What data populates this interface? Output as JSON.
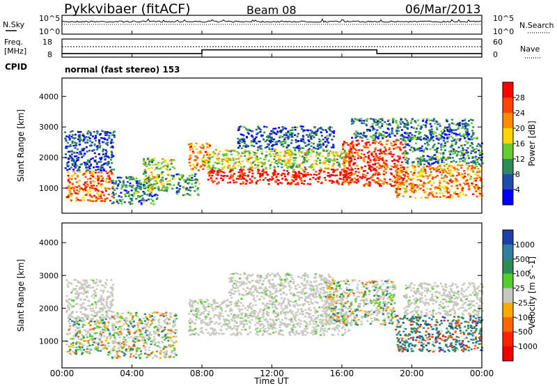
{
  "header": {
    "station": "Pykkvibaer (fitACF)",
    "beam": "Beam 08",
    "date": "06/Mar/2013"
  },
  "strip_sky": {
    "label": "N.Sky",
    "left_ticks": [
      "10^5",
      "10^0"
    ],
    "right_ticks": [
      "10^5",
      "10^0"
    ],
    "right_label": "N.Search"
  },
  "strip_freq": {
    "label_line1": "Freq.",
    "label_line2": "[MHz]",
    "left_ticks": [
      "18",
      "8"
    ],
    "right_ticks": [
      "60",
      "0"
    ],
    "right_label": "Nave",
    "freq_steps": [
      {
        "from_hour": 0,
        "to_hour": 8,
        "mhz": 10.0
      },
      {
        "from_hour": 8,
        "to_hour": 18,
        "mhz": 12.0
      },
      {
        "from_hour": 18,
        "to_hour": 24,
        "mhz": 10.0
      }
    ]
  },
  "cpid": {
    "label": "CPID",
    "mode_text": "normal (fast stereo) 153"
  },
  "chart_data": [
    {
      "type": "heatmap",
      "name": "Power",
      "xlabel": "",
      "ylabel": "Slant Range [km]",
      "x_range_hours": [
        0,
        24
      ],
      "ylim": [
        180,
        4600
      ],
      "y_ticks": [
        "4000",
        "3000",
        "2000",
        "1000"
      ],
      "colorbar": {
        "label": "Power [dB]",
        "ticks": [
          "28",
          "24",
          "20",
          "16",
          "12",
          "8",
          "4"
        ],
        "colors": [
          "#ff0000",
          "#ff4500",
          "#ff8c00",
          "#ffd700",
          "#66cc33",
          "#2e8b57",
          "#1f4fa8",
          "#0000ff"
        ]
      },
      "echo_regions": [
        {
          "x0": 0.2,
          "x1": 2.9,
          "y0": 600,
          "y1": 1600,
          "level": 0.75
        },
        {
          "x0": 0.1,
          "x1": 3.0,
          "y0": 1600,
          "y1": 2900,
          "level": 0.15
        },
        {
          "x0": 2.8,
          "x1": 5.4,
          "y0": 500,
          "y1": 1400,
          "level": 0.3
        },
        {
          "x0": 4.6,
          "x1": 6.4,
          "y0": 900,
          "y1": 2000,
          "level": 0.45
        },
        {
          "x0": 6.5,
          "x1": 7.8,
          "y0": 800,
          "y1": 1500,
          "level": 0.3
        },
        {
          "x0": 7.2,
          "x1": 8.4,
          "y0": 1600,
          "y1": 2500,
          "level": 0.7
        },
        {
          "x0": 8.3,
          "x1": 16.5,
          "y0": 1150,
          "y1": 1650,
          "level": 0.95
        },
        {
          "x0": 8.3,
          "x1": 16.5,
          "y0": 1650,
          "y1": 2300,
          "level": 0.5
        },
        {
          "x0": 10.0,
          "x1": 15.5,
          "y0": 2300,
          "y1": 3050,
          "level": 0.2
        },
        {
          "x0": 16.0,
          "x1": 19.5,
          "y0": 1100,
          "y1": 2600,
          "level": 0.85
        },
        {
          "x0": 16.5,
          "x1": 23.5,
          "y0": 2600,
          "y1": 3300,
          "level": 0.25
        },
        {
          "x0": 19.0,
          "x1": 24.0,
          "y0": 700,
          "y1": 1800,
          "level": 0.7
        },
        {
          "x0": 19.5,
          "x1": 24.0,
          "y0": 1800,
          "y1": 2700,
          "level": 0.3
        }
      ]
    },
    {
      "type": "heatmap",
      "name": "Velocity",
      "xlabel": "Time UT",
      "ylabel": "Slant Range [km]",
      "x_range_hours": [
        0,
        24
      ],
      "ylim": [
        180,
        4600
      ],
      "y_ticks": [
        "4000",
        "3000",
        "2000",
        "1000"
      ],
      "x_ticks": [
        "00:00",
        "04:00",
        "08:00",
        "12:00",
        "16:00",
        "20:00",
        "00:00"
      ],
      "colorbar": {
        "label": "Velocity [m s^-1]",
        "ticks": [
          "1000",
          "500",
          "100",
          "25",
          "-25",
          "-100",
          "-500",
          "-1000"
        ],
        "colors": [
          "#1f3fa8",
          "#2f7f9f",
          "#2e8b57",
          "#55cc33",
          "#c8c8c0",
          "#ffaa00",
          "#ff6600",
          "#ff2200",
          "#ee0000"
        ]
      },
      "echo_regions": [
        {
          "x0": 0.2,
          "x1": 3.0,
          "y0": 600,
          "y1": 1700,
          "vel": "mixed"
        },
        {
          "x0": 0.2,
          "x1": 2.9,
          "y0": 1700,
          "y1": 2900,
          "vel": "ground"
        },
        {
          "x0": 2.8,
          "x1": 6.5,
          "y0": 500,
          "y1": 1900,
          "vel": "mixed"
        },
        {
          "x0": 7.2,
          "x1": 16.5,
          "y0": 1200,
          "y1": 2300,
          "vel": "ground"
        },
        {
          "x0": 9.5,
          "x1": 15.5,
          "y0": 2300,
          "y1": 3100,
          "vel": "ground"
        },
        {
          "x0": 15.0,
          "x1": 19.0,
          "y0": 1500,
          "y1": 2900,
          "vel": "mixed"
        },
        {
          "x0": 19.0,
          "x1": 24.0,
          "y0": 700,
          "y1": 1800,
          "vel": "toward"
        },
        {
          "x0": 19.5,
          "x1": 24.0,
          "y0": 1800,
          "y1": 2800,
          "vel": "ground"
        }
      ]
    }
  ]
}
